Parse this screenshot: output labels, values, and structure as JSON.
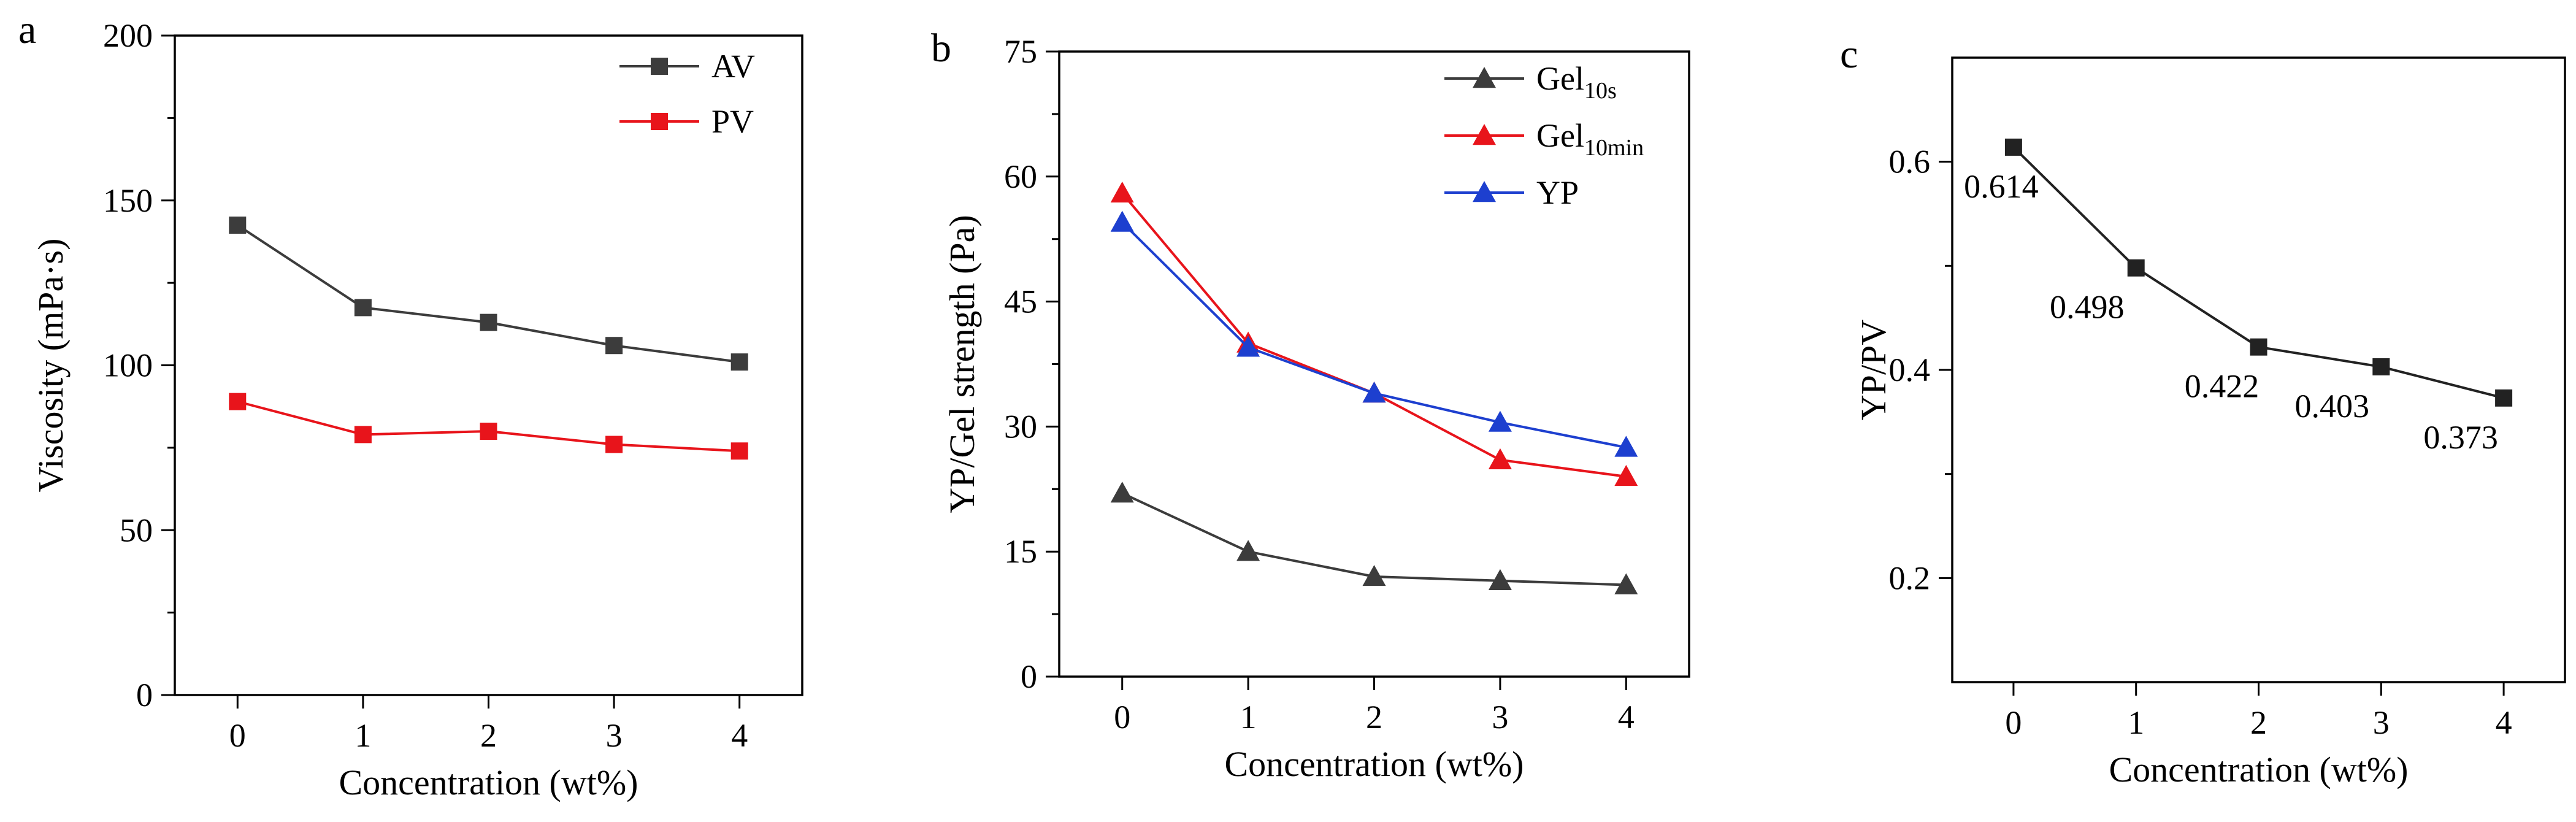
{
  "chart_data": [
    {
      "panel": "a",
      "type": "line",
      "xlabel": "Concentration (wt%)",
      "ylabel": "Viscosity (mPa·s)",
      "x": [
        0,
        1,
        2,
        3,
        4
      ],
      "xticks": [
        "0",
        "1",
        "2",
        "3",
        "4"
      ],
      "xlim": [
        -0.5,
        4.5
      ],
      "ylim": [
        0,
        200
      ],
      "yticks": [
        0,
        50,
        100,
        150,
        200
      ],
      "legend_position": "top-right",
      "series": [
        {
          "name": "AV",
          "sub": "",
          "color": "#3c3c3c",
          "marker": "square",
          "values": [
            142.5,
            117.5,
            113,
            106,
            101
          ]
        },
        {
          "name": "PV",
          "sub": "",
          "color": "#e8141b",
          "marker": "square",
          "values": [
            89,
            79,
            80,
            76,
            74
          ]
        }
      ]
    },
    {
      "panel": "b",
      "type": "line",
      "xlabel": "Concentration (wt%)",
      "ylabel": "YP/Gel strength (Pa)",
      "x": [
        0,
        1,
        2,
        3,
        4
      ],
      "xticks": [
        "0",
        "1",
        "2",
        "3",
        "4"
      ],
      "xlim": [
        -0.5,
        4.5
      ],
      "ylim": [
        0,
        75
      ],
      "yticks": [
        0,
        15,
        30,
        45,
        60,
        75
      ],
      "legend_position": "top-right",
      "series": [
        {
          "name": "Gel",
          "sub": "10s",
          "color": "#3c3c3c",
          "marker": "triangle",
          "values": [
            22,
            15,
            12,
            11.5,
            11
          ]
        },
        {
          "name": "Gel",
          "sub": "10min",
          "color": "#e8141b",
          "marker": "triangle",
          "values": [
            58,
            40,
            34,
            26,
            24
          ]
        },
        {
          "name": "YP",
          "sub": "",
          "color": "#1d3fcf",
          "marker": "triangle",
          "values": [
            54.5,
            39.5,
            34,
            30.5,
            27.5
          ]
        }
      ]
    },
    {
      "panel": "c",
      "type": "line",
      "xlabel": "Concentration (wt%)",
      "ylabel": "YP/PV",
      "x": [
        0,
        1,
        2,
        3,
        4
      ],
      "xticks": [
        "0",
        "1",
        "2",
        "3",
        "4"
      ],
      "xlim": [
        -0.5,
        4.5
      ],
      "ylim": [
        0.1,
        0.7
      ],
      "yticks": [
        0.2,
        0.4,
        0.6
      ],
      "ytick_labels": [
        "0.2",
        "0.4",
        "0.6"
      ],
      "series": [
        {
          "name": "YP/PV",
          "sub": "",
          "color": "#222222",
          "marker": "square",
          "values": [
            0.614,
            0.498,
            0.422,
            0.403,
            0.373
          ],
          "labels": [
            "0.614",
            "0.498",
            "0.422",
            "0.403",
            "0.373"
          ]
        }
      ]
    }
  ]
}
